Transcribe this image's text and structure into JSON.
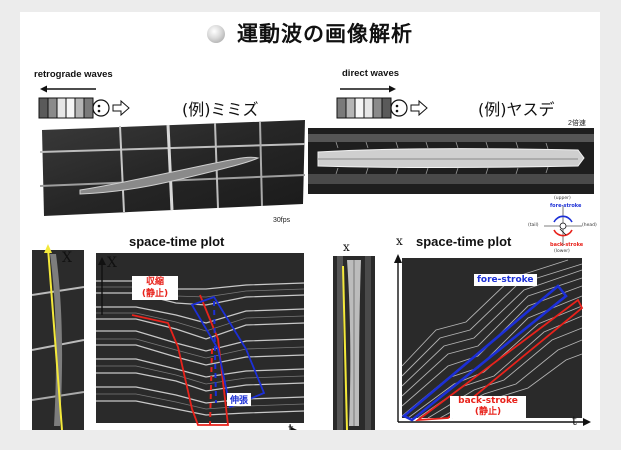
{
  "slide": {
    "title": "運動波の画像解析",
    "left": {
      "wave_label": "retrograde waves",
      "example": "(例)ミミズ",
      "fps": "30fps",
      "plot_title": "space-time plot",
      "axis_x": "X",
      "axis_t": "t",
      "contraction_label": "収縮",
      "rest_label": "(静止)",
      "extension_label": "伸張"
    },
    "right": {
      "wave_label": "direct waves",
      "example": "(例)ヤスデ",
      "speed": "2倍速",
      "plot_title": "space-time plot",
      "axis_x_video": "x",
      "axis_x_plot": "x",
      "axis_t": "t",
      "fore_stroke": "fore-stroke",
      "back_stroke": "back-stroke",
      "rest_label": "(静止)",
      "compass": {
        "upper": "(upper)",
        "lower": "(lower)",
        "tail": "(tail)",
        "head": "(head)",
        "fore": "fore-stroke",
        "back": "back-stroke"
      }
    }
  },
  "colors": {
    "red": "#e8221b",
    "blue": "#1c2fd6",
    "yellow": "#f3e83a"
  }
}
